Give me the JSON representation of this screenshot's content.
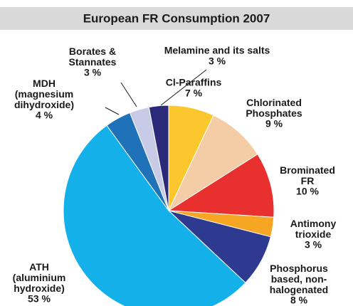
{
  "chart_data": {
    "type": "pie",
    "title": "European FR Consumption 2007",
    "categories": [
      "Cl-Paraffins",
      "Chlorinated\nPhosphates",
      "Brominated\nFR",
      "Antimony\ntrioxide",
      "Phosphorus\nbased, non-\nhalogenated",
      "ATH\n(aluminium\nhydroxide)",
      "MDH\n(magnesium\ndihydroxide)",
      "Borates &\nStannates",
      "Melamine and its salts"
    ],
    "values": [
      7,
      9,
      10,
      3,
      8,
      53,
      4,
      3,
      3
    ],
    "value_labels": [
      "7 %",
      "9 %",
      "10 %",
      "3 %",
      "8 %",
      "53 %",
      "4 %",
      "3 %",
      "3 %"
    ],
    "colors": [
      "#fcc72d",
      "#f4cca5",
      "#e8312f",
      "#f6a623",
      "#2e3a8f",
      "#14b0ea",
      "#1f72b8",
      "#c7cbe6",
      "#2b2a7a"
    ]
  }
}
